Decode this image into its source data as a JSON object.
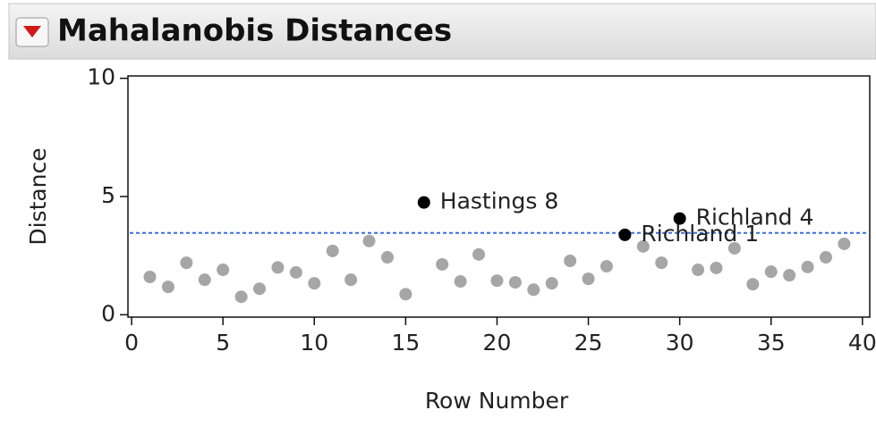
{
  "chart_data": {
    "type": "scatter",
    "title": "Mahalanobis Distances",
    "x_label": "Row Number",
    "y_label": "Distance",
    "xlim": [
      -0.2,
      40.4
    ],
    "ylim": [
      -0.1,
      10.1
    ],
    "xticks": [
      0,
      5,
      10,
      15,
      20,
      25,
      30,
      35,
      40
    ],
    "yticks": [
      0,
      5,
      10
    ],
    "reference_line": {
      "value": 3.46,
      "color": "#3b6fe0"
    },
    "series": [
      {
        "color": "#a6a6a6",
        "x": [
          1,
          2,
          3,
          4,
          5,
          6,
          7,
          8,
          9,
          10,
          11,
          12,
          13,
          14,
          15,
          17,
          18,
          19,
          20,
          21,
          22,
          23,
          24,
          25,
          26,
          28,
          29,
          31,
          32,
          33,
          34,
          35,
          36,
          37,
          38,
          39
        ],
        "values": [
          1.6,
          1.18,
          2.2,
          1.48,
          1.9,
          0.76,
          1.1,
          2.0,
          1.79,
          1.33,
          2.7,
          1.48,
          3.12,
          2.43,
          0.87,
          2.13,
          1.41,
          2.55,
          1.44,
          1.37,
          1.06,
          1.33,
          2.28,
          1.52,
          2.05,
          2.89,
          2.2,
          1.9,
          1.98,
          2.81,
          1.29,
          1.82,
          1.67,
          2.02,
          2.43,
          3.0
        ]
      },
      {
        "color": "#000000",
        "x": [
          16,
          27,
          30
        ],
        "values": [
          4.75,
          3.38,
          4.07
        ],
        "labels": [
          "Hastings 8",
          "Richland 1",
          "Richland 4"
        ]
      }
    ]
  }
}
